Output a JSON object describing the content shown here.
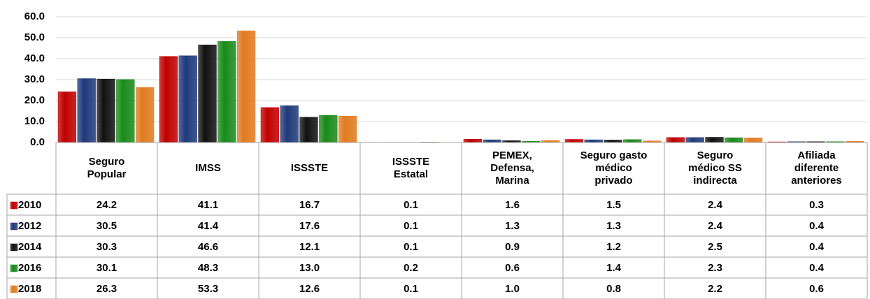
{
  "chart_data": {
    "type": "bar",
    "categories": [
      "Seguro Popular",
      "IMSS",
      "ISSSTE",
      "ISSSTE Estatal",
      "PEMEX, Defensa, Marina",
      "Seguro gasto médico privado",
      "Seguro médico SS indirecta",
      "Afiliada diferente anteriores"
    ],
    "series": [
      {
        "name": "2010",
        "color": "#c00000",
        "values": [
          24.2,
          41.1,
          16.7,
          0.1,
          1.6,
          1.5,
          2.4,
          0.3
        ],
        "value_labels": [
          "24.2",
          "41.1",
          "16.7",
          "0.1",
          "1.6",
          "1.5",
          "2.4",
          "0.3"
        ]
      },
      {
        "name": "2012",
        "color": "#1f3a7a",
        "values": [
          30.5,
          41.4,
          17.6,
          0.1,
          1.3,
          1.3,
          2.4,
          0.4
        ],
        "value_labels": [
          "30.5",
          "41.4",
          "17.6",
          "0.1",
          "1.3",
          "1.3",
          "2.4",
          "0.4"
        ]
      },
      {
        "name": "2014",
        "color": "#111111",
        "values": [
          30.3,
          46.6,
          12.1,
          0.1,
          0.9,
          1.2,
          2.5,
          0.4
        ],
        "value_labels": [
          "30.3",
          "46.6",
          "12.1",
          "0.1",
          "0.9",
          "1.2",
          "2.5",
          "0.4"
        ]
      },
      {
        "name": "2016",
        "color": "#1a8a1a",
        "values": [
          30.1,
          48.3,
          13.0,
          0.2,
          0.6,
          1.4,
          2.3,
          0.4
        ],
        "value_labels": [
          "30.1",
          "48.3",
          "13.0",
          "0.2",
          "0.6",
          "1.4",
          "2.3",
          "0.4"
        ]
      },
      {
        "name": "2018",
        "color": "#e07b20",
        "values": [
          26.3,
          53.3,
          12.6,
          0.1,
          1.0,
          0.8,
          2.2,
          0.6
        ],
        "value_labels": [
          "26.3",
          "53.3",
          "12.6",
          "0.1",
          "1.0",
          "0.8",
          "2.2",
          "0.6"
        ]
      }
    ],
    "ylim": [
      0,
      60
    ],
    "yticks": [
      {
        "value": 0,
        "label": "0.0"
      },
      {
        "value": 10,
        "label": "10.0"
      },
      {
        "value": 20,
        "label": "20.0"
      },
      {
        "value": 30,
        "label": "30.0"
      },
      {
        "value": 40,
        "label": "40.0"
      },
      {
        "value": 50,
        "label": "50.0"
      },
      {
        "value": 60,
        "label": "60.0"
      }
    ],
    "grid": true
  }
}
